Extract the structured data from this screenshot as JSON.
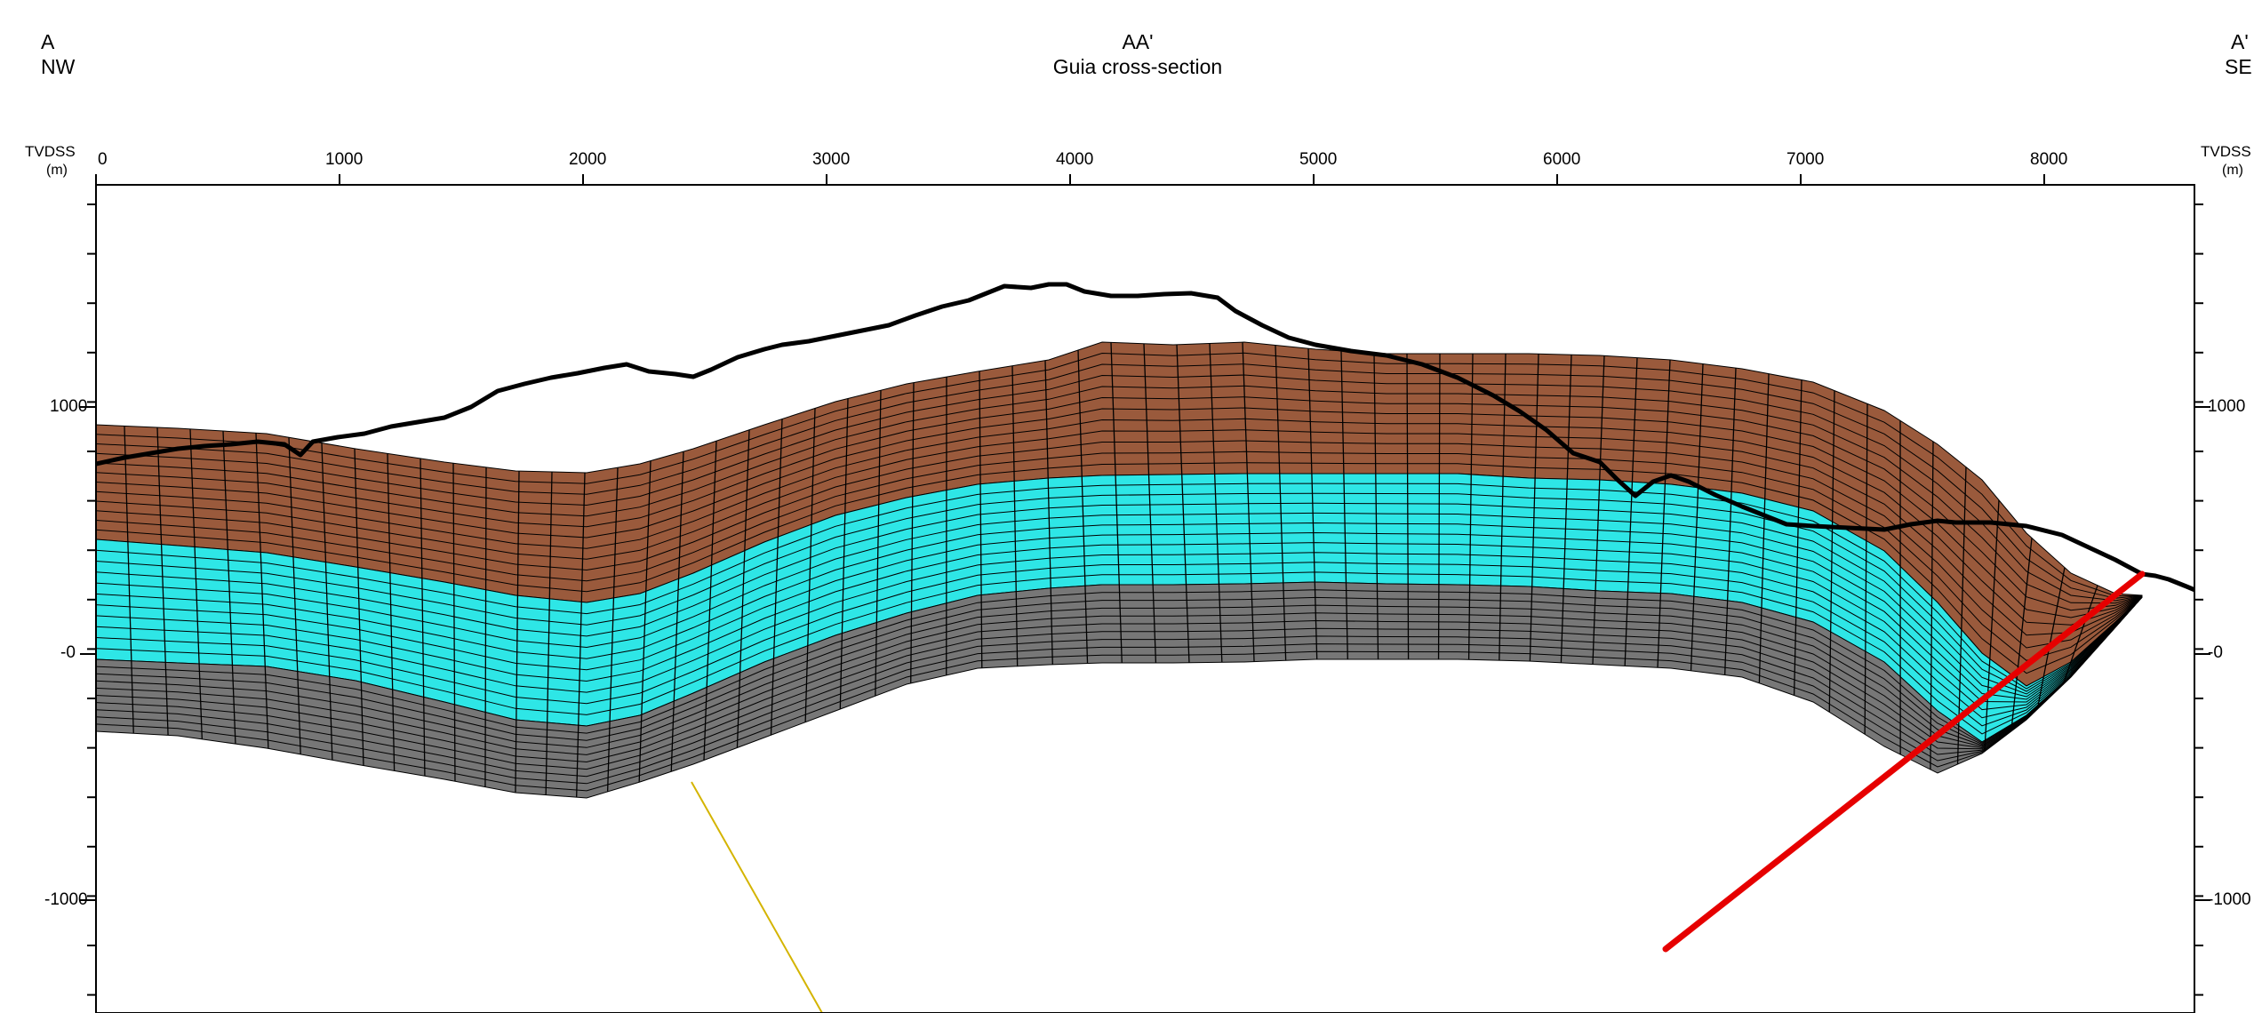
{
  "header": {
    "left_letter": "A",
    "left_dir": "NW",
    "title": "AA'",
    "subtitle": "Guia cross-section",
    "right_letter": "A'",
    "right_dir": "SE"
  },
  "axes": {
    "left_label": "TVDSS",
    "right_label": "TVDSS",
    "unit": "(m)",
    "x_ticks": [
      "0",
      "1000",
      "2000",
      "3000",
      "4000",
      "5000",
      "6000",
      "7000",
      "8000"
    ],
    "left_y_ticks": [
      "1000",
      "-0",
      "-1000"
    ],
    "right_y_ticks": [
      "1000",
      "-0",
      "-1000"
    ]
  },
  "colors": {
    "upper_layer": "#9a5a3c",
    "middle_layer": "#2ee6e6",
    "lower_layer": "#777777",
    "fault": "#e60000",
    "well": "#d4b400",
    "topography": "#000000"
  }
}
